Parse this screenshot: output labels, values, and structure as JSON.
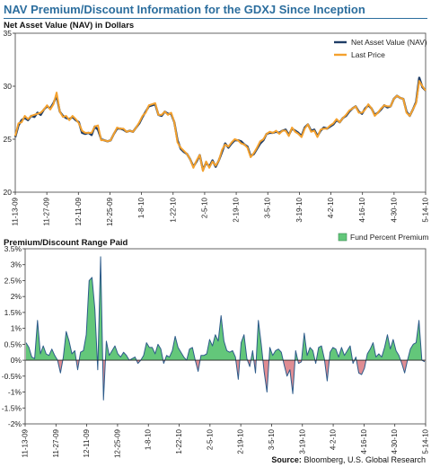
{
  "page": {
    "title": "NAV Premium/Discount Information for the GDXJ Since Inception",
    "source_label": "Source:",
    "source_text": "Bloomberg, U.S. Global Research"
  },
  "colors": {
    "title": "#2c6e9e",
    "nav_line": "#1f3d66",
    "price_line": "#f4a12e",
    "premium_fill": "#63c77a",
    "discount_fill": "#e08d93",
    "premium_line": "#2d5b8a"
  },
  "chart_data": [
    {
      "type": "line",
      "title": "Net Asset Value (NAV) in Dollars",
      "ylim": [
        20,
        35
      ],
      "yticks": [
        20,
        25,
        30,
        35
      ],
      "ytick_labels": [
        "20",
        "25",
        "30",
        "35"
      ],
      "x_tick_labels": [
        "11-13-09",
        "11-27-09",
        "12-11-09",
        "12-25-09",
        "1-8-10",
        "1-22-10",
        "2-5-10",
        "2-19-10",
        "3-5-10",
        "3-19-10",
        "4-2-10",
        "4-16-10",
        "4-30-10",
        "5-14-10"
      ],
      "legend_position": "top-right",
      "grid": false,
      "series": [
        {
          "name": "Net Asset Value (NAV)",
          "color": "#1f3d66",
          "values": [
            25.2,
            26.3,
            26.8,
            27.0,
            26.8,
            27.2,
            27.1,
            27.5,
            27.3,
            27.8,
            28.1,
            27.9,
            28.4,
            29.1,
            27.6,
            27.2,
            27.0,
            26.9,
            27.1,
            26.8,
            26.6,
            25.6,
            25.5,
            25.6,
            25.4,
            26.2,
            25.9,
            25.0,
            24.9,
            24.8,
            24.9,
            25.5,
            26.0,
            26.0,
            25.9,
            25.7,
            25.8,
            25.7,
            26.1,
            26.5,
            27.1,
            27.6,
            28.1,
            28.2,
            28.3,
            27.3,
            27.2,
            27.6,
            27.4,
            27.4,
            26.6,
            24.9,
            24.1,
            23.8,
            23.6,
            23.1,
            22.4,
            22.9,
            23.5,
            22.1,
            22.8,
            22.4,
            23.0,
            22.4,
            23.0,
            23.8,
            24.6,
            24.2,
            24.6,
            24.9,
            24.9,
            24.8,
            24.5,
            24.3,
            23.4,
            23.6,
            24.1,
            24.6,
            24.9,
            25.5,
            25.6,
            25.6,
            25.7,
            25.6,
            25.8,
            25.9,
            25.4,
            26.0,
            25.8,
            25.6,
            25.3,
            26.1,
            26.4,
            25.8,
            25.9,
            25.3,
            25.8,
            26.1,
            26.0,
            26.2,
            26.4,
            26.8,
            26.6,
            27.0,
            27.2,
            27.6,
            27.9,
            28.1,
            27.6,
            27.4,
            27.9,
            28.2,
            27.9,
            27.3,
            27.5,
            27.8,
            28.2,
            28.0,
            28.1,
            28.8,
            29.1,
            28.9,
            28.8,
            27.6,
            27.2,
            27.8,
            28.5,
            30.8,
            29.9,
            29.6
          ]
        },
        {
          "name": "Last Price",
          "color": "#f4a12e",
          "values": [
            25.3,
            26.5,
            26.6,
            27.2,
            26.9,
            27.2,
            27.3,
            27.4,
            27.5,
            27.8,
            28.2,
            27.8,
            28.3,
            29.4,
            27.6,
            27.1,
            27.2,
            26.8,
            27.2,
            26.9,
            26.5,
            25.8,
            25.6,
            25.6,
            25.6,
            26.2,
            26.3,
            24.9,
            24.9,
            24.8,
            24.9,
            25.5,
            26.1,
            26.0,
            26.0,
            25.7,
            25.8,
            25.7,
            26.1,
            26.6,
            27.2,
            27.5,
            28.2,
            28.3,
            28.4,
            27.3,
            27.3,
            27.6,
            27.3,
            27.5,
            26.6,
            24.7,
            24.2,
            23.9,
            23.6,
            23.1,
            22.3,
            23.0,
            23.5,
            22.0,
            22.9,
            22.3,
            22.9,
            22.5,
            23.0,
            24.0,
            24.5,
            24.3,
            24.7,
            25.0,
            24.9,
            24.6,
            24.5,
            24.2,
            23.3,
            23.7,
            24.2,
            24.8,
            25.0,
            25.5,
            25.7,
            25.6,
            25.8,
            25.5,
            25.8,
            25.8,
            25.3,
            26.1,
            25.7,
            25.5,
            25.2,
            26.0,
            26.4,
            25.7,
            25.8,
            25.2,
            25.9,
            26.0,
            26.0,
            26.3,
            26.5,
            26.9,
            26.6,
            27.0,
            27.3,
            27.7,
            27.9,
            28.1,
            27.5,
            27.5,
            27.8,
            28.3,
            27.9,
            27.2,
            27.5,
            27.9,
            28.2,
            28.1,
            28.1,
            28.8,
            29.1,
            28.9,
            28.8,
            27.5,
            27.2,
            27.8,
            28.4,
            30.5,
            30.0,
            29.6
          ]
        }
      ]
    },
    {
      "type": "area",
      "title": "Premium/Discount Range Paid",
      "ylim": [
        -2,
        3.5
      ],
      "yticks": [
        -2,
        -1.5,
        -1,
        -0.5,
        0,
        0.5,
        1,
        1.5,
        2,
        2.5,
        3,
        3.5
      ],
      "ytick_labels": [
        "-2%",
        "-1.5%",
        "-1%",
        "-0.5%",
        "0%",
        "0.5%",
        "1%",
        "1.5%",
        "2%",
        "2.5%",
        "3%",
        "3.5%"
      ],
      "x_tick_labels": [
        "11-13-09",
        "11-27-09",
        "12-11-09",
        "12-25-09",
        "1-8-10",
        "1-22-10",
        "2-5-10",
        "2-19-10",
        "3-5-10",
        "3-19-10",
        "4-2-10",
        "4-16-10",
        "4-30-10",
        "5-14-10"
      ],
      "legend_position": "top-right",
      "grid": false,
      "series": [
        {
          "name": "Fund Percent Premium",
          "values": [
            0.55,
            0.4,
            0.1,
            0.05,
            1.25,
            0.2,
            0.45,
            0.2,
            0.15,
            0.35,
            0.15,
            0.0,
            -0.4,
            0.1,
            0.9,
            0.6,
            0.2,
            0.3,
            -0.3,
            0.25,
            0.3,
            0.8,
            2.5,
            2.6,
            1.6,
            -0.3,
            3.25,
            -1.25,
            0.6,
            0.15,
            0.3,
            0.45,
            0.2,
            0.1,
            0.25,
            0.15,
            0.0,
            0.05,
            0.1,
            -0.1,
            0.0,
            0.15,
            0.55,
            0.4,
            0.4,
            0.2,
            0.5,
            0.35,
            -0.1,
            0.15,
            0.1,
            0.3,
            0.75,
            0.4,
            0.25,
            0.1,
            0.0,
            0.35,
            0.4,
            0.0,
            -0.35,
            0.15,
            0.15,
            0.2,
            0.65,
            0.45,
            0.8,
            0.6,
            1.4,
            0.6,
            0.3,
            0.25,
            0.3,
            0.1,
            -0.6,
            0.55,
            0.8,
            0.05,
            -0.2,
            0.3,
            -0.4,
            1.25,
            0.5,
            -0.35,
            -1.0,
            0.4,
            0.15,
            0.3,
            0.35,
            0.25,
            -0.15,
            -0.5,
            -0.3,
            -1.05,
            0.3,
            -0.1,
            -0.05,
            0.85,
            0.15,
            0.4,
            0.3,
            -0.1,
            0.4,
            0.45,
            0.05,
            -0.65,
            0.25,
            0.4,
            0.35,
            0.1,
            0.4,
            0.15,
            0.3,
            0.45,
            -0.1,
            0.1,
            -0.4,
            -0.45,
            -0.25,
            0.2,
            0.35,
            0.55,
            0.1,
            0.2,
            0.1,
            0.4,
            0.8,
            0.35,
            0.65,
            0.3,
            0.15,
            -0.1,
            -0.4,
            0.0,
            0.35,
            0.5,
            0.55,
            1.25,
            0.0,
            -0.05
          ]
        }
      ]
    }
  ]
}
